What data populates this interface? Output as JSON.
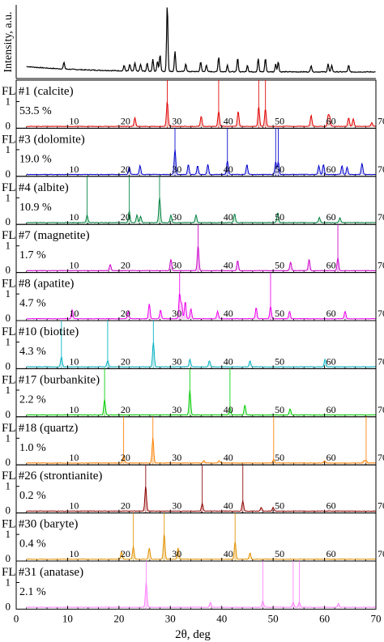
{
  "chart_data": {
    "type": "line",
    "xlabel": "2θ, deg",
    "ylabel": "Intensity, a.u.",
    "xlim": [
      0,
      70
    ],
    "x_ticks": [
      "0",
      "10",
      "20",
      "30",
      "40",
      "50",
      "60",
      "70"
    ],
    "y_tick_labels": [
      "0",
      "1"
    ],
    "grid": false,
    "overview": {
      "name": "measured pattern",
      "color": "#000000",
      "peaks": [
        [
          9.3,
          0.1
        ],
        [
          21,
          0.08
        ],
        [
          22.1,
          0.1
        ],
        [
          23.1,
          0.12
        ],
        [
          24.2,
          0.1
        ],
        [
          25.5,
          0.12
        ],
        [
          26.6,
          0.18
        ],
        [
          27.5,
          0.15
        ],
        [
          28.0,
          0.25
        ],
        [
          29.4,
          1.0
        ],
        [
          30.9,
          0.3
        ],
        [
          33.0,
          0.12
        ],
        [
          35.9,
          0.15
        ],
        [
          37.0,
          0.1
        ],
        [
          39.4,
          0.22
        ],
        [
          41.1,
          0.1
        ],
        [
          43.1,
          0.2
        ],
        [
          45.0,
          0.1
        ],
        [
          47.1,
          0.2
        ],
        [
          48.5,
          0.2
        ],
        [
          50.5,
          0.12
        ],
        [
          51.0,
          0.15
        ],
        [
          57.4,
          0.1
        ],
        [
          60.7,
          0.12
        ],
        [
          61.4,
          0.1
        ],
        [
          64.7,
          0.1
        ]
      ]
    },
    "panels": [
      {
        "label": "FL #1 (calcite)",
        "percent": "53.5 %",
        "color": "#e00000",
        "fill": "#f5c6c0",
        "peaks": [
          [
            23.1,
            0.35
          ],
          [
            29.4,
            1.0
          ],
          [
            36.0,
            0.4
          ],
          [
            39.4,
            0.6
          ],
          [
            43.2,
            0.6
          ],
          [
            47.2,
            0.8
          ],
          [
            48.5,
            0.7
          ],
          [
            57.4,
            0.45
          ],
          [
            60.7,
            0.4
          ],
          [
            61.0,
            0.35
          ],
          [
            64.7,
            0.35
          ],
          [
            65.6,
            0.3
          ],
          [
            69.2,
            0.15
          ]
        ],
        "lines": [
          29.4,
          39.4,
          47.2,
          48.5
        ]
      },
      {
        "label": "FL #3 (dolomite)",
        "percent": "19.0 %",
        "color": "#0000cc",
        "fill": "#c6c6f0",
        "peaks": [
          [
            22.0,
            0.3
          ],
          [
            24.1,
            0.35
          ],
          [
            30.9,
            1.0
          ],
          [
            33.5,
            0.4
          ],
          [
            35.3,
            0.35
          ],
          [
            37.3,
            0.4
          ],
          [
            41.1,
            0.55
          ],
          [
            44.9,
            0.4
          ],
          [
            50.5,
            0.5
          ],
          [
            51.0,
            0.5
          ],
          [
            58.9,
            0.35
          ],
          [
            59.8,
            0.4
          ],
          [
            63.4,
            0.35
          ],
          [
            64.4,
            0.3
          ],
          [
            67.3,
            0.45
          ]
        ],
        "lines": [
          30.9,
          41.1,
          50.5,
          51.0
        ]
      },
      {
        "label": "FL #4 (albite)",
        "percent": "10.9 %",
        "color": "#008040",
        "fill": "#c6e8d0",
        "peaks": [
          [
            13.8,
            0.3
          ],
          [
            22.0,
            0.45
          ],
          [
            23.5,
            0.3
          ],
          [
            24.2,
            0.25
          ],
          [
            27.9,
            1.0
          ],
          [
            30.1,
            0.3
          ],
          [
            35.0,
            0.3
          ],
          [
            42.5,
            0.35
          ],
          [
            50.9,
            0.4
          ],
          [
            59.0,
            0.2
          ],
          [
            63.0,
            0.2
          ]
        ],
        "lines": [
          13.8,
          22.0,
          27.9
        ]
      },
      {
        "label": "FL #7 (magnetite)",
        "percent": "1.7 %",
        "color": "#cc00cc",
        "fill": "#f0c6f0",
        "peaks": [
          [
            18.3,
            0.25
          ],
          [
            30.1,
            0.45
          ],
          [
            35.4,
            1.0
          ],
          [
            43.1,
            0.4
          ],
          [
            53.4,
            0.35
          ],
          [
            57.0,
            0.45
          ],
          [
            62.6,
            0.5
          ]
        ],
        "lines": [
          35.4,
          62.6
        ]
      },
      {
        "label": "FL #8 (apatite)",
        "percent": "4.7 %",
        "color": "#ee00ee",
        "fill": "#f8c6f8",
        "peaks": [
          [
            10.9,
            0.35
          ],
          [
            21.8,
            0.3
          ],
          [
            25.9,
            0.6
          ],
          [
            28.1,
            0.35
          ],
          [
            31.8,
            1.0
          ],
          [
            32.2,
            0.6
          ],
          [
            32.9,
            0.7
          ],
          [
            34.0,
            0.4
          ],
          [
            39.2,
            0.3
          ],
          [
            46.7,
            0.45
          ],
          [
            49.5,
            0.5
          ],
          [
            53.2,
            0.3
          ],
          [
            64.0,
            0.3
          ]
        ],
        "lines": [
          31.8,
          49.5
        ]
      },
      {
        "label": "FL #10 (biotite)",
        "percent": "4.3 %",
        "color": "#00b0c0",
        "fill": "#c6eef0",
        "peaks": [
          [
            8.8,
            0.4
          ],
          [
            17.8,
            0.25
          ],
          [
            26.7,
            1.0
          ],
          [
            33.8,
            0.3
          ],
          [
            37.6,
            0.25
          ],
          [
            45.5,
            0.25
          ],
          [
            60.1,
            0.3
          ]
        ],
        "lines": [
          8.8,
          17.8,
          26.7
        ]
      },
      {
        "label": "FL #17 (burbankite)",
        "percent": "2.2 %",
        "color": "#00cc00",
        "fill": "#c6f0c6",
        "peaks": [
          [
            17.2,
            0.6
          ],
          [
            33.8,
            1.0
          ],
          [
            41.6,
            0.3
          ],
          [
            44.5,
            0.4
          ],
          [
            53.3,
            0.25
          ]
        ],
        "lines": [
          17.2,
          33.8,
          41.6
        ]
      },
      {
        "label": "FL #18 (quartz)",
        "percent": "1.0 %",
        "color": "#ff8000",
        "fill": "#ffd8b0",
        "peaks": [
          [
            20.9,
            0.3
          ],
          [
            26.6,
            1.0
          ],
          [
            36.5,
            0.1
          ],
          [
            39.5,
            0.1
          ],
          [
            50.1,
            0.15
          ],
          [
            60.0,
            0.1
          ],
          [
            67.7,
            0.1
          ],
          [
            68.1,
            0.1
          ]
        ],
        "lines": [
          20.9,
          26.6,
          50.1,
          68.1
        ]
      },
      {
        "label": "FL #26 (strontianite)",
        "percent": "0.2 %",
        "color": "#8b0000",
        "fill": "#e8c0c0",
        "peaks": [
          [
            25.2,
            1.0
          ],
          [
            36.2,
            0.3
          ],
          [
            44.1,
            0.4
          ],
          [
            47.7,
            0.15
          ],
          [
            50.0,
            0.15
          ]
        ],
        "lines": [
          25.2,
          36.2,
          44.1
        ]
      },
      {
        "label": "FL #30 (baryte)",
        "percent": "0.4 %",
        "color": "#e09000",
        "fill": "#f8e0b0",
        "peaks": [
          [
            20.5,
            0.3
          ],
          [
            22.8,
            0.5
          ],
          [
            25.9,
            0.45
          ],
          [
            28.8,
            1.0
          ],
          [
            31.5,
            0.45
          ],
          [
            42.6,
            0.7
          ],
          [
            45.5,
            0.25
          ]
        ],
        "lines": [
          22.8,
          28.8,
          42.6
        ]
      },
      {
        "label": "FL #31 (anatase)",
        "percent": "2.1 %",
        "color": "#ff80ff",
        "fill": "#ffd0ff",
        "peaks": [
          [
            25.3,
            1.0
          ],
          [
            37.8,
            0.2
          ],
          [
            48.0,
            0.25
          ],
          [
            53.9,
            0.2
          ],
          [
            55.1,
            0.2
          ],
          [
            62.7,
            0.15
          ]
        ],
        "lines": [
          25.3,
          48.0,
          53.9,
          55.1
        ]
      }
    ]
  }
}
